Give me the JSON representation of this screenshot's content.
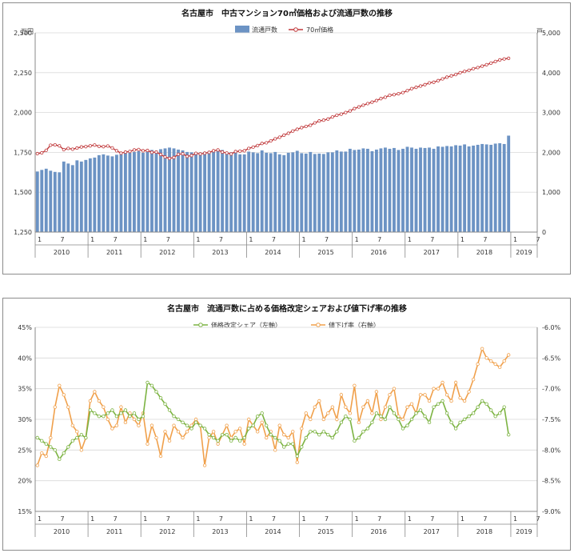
{
  "chart_data": [
    {
      "type": "bar+line",
      "title": "名古屋市　中古マンション70㎡価格および流通戸数の推移",
      "left_unit": "万円",
      "right_unit": "戸",
      "left_ticks": [
        "1,250",
        "1,500",
        "1,750",
        "2,000",
        "2,250",
        "2,500"
      ],
      "right_ticks": [
        "0",
        "1,000",
        "2,000",
        "3,000",
        "4,000",
        "5,000"
      ],
      "left_ylim": [
        1250,
        2500
      ],
      "right_ylim": [
        0,
        5000
      ],
      "legend": [
        {
          "label": "流通戸数",
          "color": "#6c93c4",
          "kind": "bar"
        },
        {
          "label": "70㎡価格",
          "color": "#c0393b",
          "kind": "line"
        }
      ],
      "month_labels": [
        "1",
        "7"
      ],
      "years": [
        "2010",
        "2011",
        "2012",
        "2013",
        "2014",
        "2015",
        "2016",
        "2017",
        "2018",
        "2019"
      ],
      "series_line": [
        1742,
        1747,
        1763,
        1795,
        1797,
        1791,
        1767,
        1775,
        1770,
        1777,
        1784,
        1786,
        1791,
        1796,
        1788,
        1786,
        1790,
        1778,
        1760,
        1745,
        1752,
        1756,
        1765,
        1768,
        1760,
        1762,
        1750,
        1752,
        1737,
        1721,
        1712,
        1718,
        1738,
        1741,
        1725,
        1730,
        1744,
        1740,
        1745,
        1750,
        1760,
        1765,
        1752,
        1746,
        1740,
        1755,
        1758,
        1760,
        1775,
        1783,
        1793,
        1806,
        1810,
        1822,
        1835,
        1845,
        1858,
        1870,
        1884,
        1895,
        1905,
        1913,
        1920,
        1935,
        1947,
        1952,
        1959,
        1972,
        1983,
        1990,
        2000,
        2010,
        2025,
        2035,
        2046,
        2056,
        2065,
        2075,
        2087,
        2096,
        2108,
        2112,
        2118,
        2125,
        2137,
        2150,
        2158,
        2166,
        2175,
        2186,
        2190,
        2200,
        2211,
        2222,
        2230,
        2238,
        2250,
        2258,
        2265,
        2275,
        2282,
        2291,
        2300,
        2310,
        2320,
        2330,
        2336,
        2340
      ],
      "series_bars": [
        1520,
        1560,
        1590,
        1540,
        1510,
        1500,
        1770,
        1720,
        1680,
        1800,
        1770,
        1810,
        1850,
        1870,
        1930,
        1950,
        1920,
        1900,
        1940,
        1950,
        1980,
        1990,
        2010,
        2030,
        1990,
        2040,
        2060,
        2040,
        2080,
        2100,
        2120,
        2100,
        2070,
        2050,
        2010,
        2000,
        2000,
        1990,
        2010,
        2030,
        2050,
        2040,
        2060,
        2010,
        2000,
        1990,
        1950,
        1950,
        2020,
        2000,
        1980,
        2050,
        1990,
        1980,
        2010,
        1950,
        1930,
        1990,
        2000,
        2040,
        1980,
        1970,
        2010,
        1960,
        1970,
        1960,
        2000,
        2000,
        2050,
        2020,
        2020,
        2090,
        2060,
        2070,
        2100,
        2090,
        2030,
        2070,
        2100,
        2120,
        2090,
        2110,
        2060,
        2090,
        2140,
        2120,
        2090,
        2120,
        2110,
        2120,
        2090,
        2150,
        2140,
        2160,
        2150,
        2180,
        2170,
        2200,
        2150,
        2170,
        2190,
        2210,
        2200,
        2190,
        2220,
        2230,
        2210,
        2420
      ]
    },
    {
      "type": "line",
      "title": "名古屋市　流通戸数に占める価格改定シェアおよび値下げ率の推移",
      "left_ticks": [
        "15%",
        "20%",
        "25%",
        "30%",
        "35%",
        "40%",
        "45%"
      ],
      "right_ticks": [
        "-9.0%",
        "-8.5%",
        "-8.0%",
        "-7.5%",
        "-7.0%",
        "-6.5%",
        "-6.0%"
      ],
      "left_ylim": [
        15,
        45
      ],
      "right_ylim": [
        -9.0,
        -6.0
      ],
      "legend": [
        {
          "label": "価格改定シェア（左軸）",
          "color": "#7cb342"
        },
        {
          "label": "値下げ率（右軸）",
          "color": "#f0a04b"
        }
      ],
      "month_labels": [
        "1",
        "7"
      ],
      "years": [
        "2010",
        "2011",
        "2012",
        "2013",
        "2014",
        "2015",
        "2016",
        "2017",
        "2018",
        "2019"
      ],
      "series_share": [
        27.0,
        26.5,
        26.0,
        25.5,
        25.0,
        23.5,
        24.5,
        25.5,
        26.5,
        27.0,
        27.5,
        27.0,
        31.5,
        31.0,
        30.5,
        30.5,
        31.0,
        31.5,
        30.5,
        31.0,
        31.5,
        30.5,
        31.0,
        30.0,
        30.5,
        36.0,
        35.5,
        34.5,
        33.5,
        32.5,
        31.5,
        30.5,
        30.0,
        29.5,
        29.0,
        28.5,
        29.5,
        29.0,
        28.5,
        27.5,
        27.0,
        26.5,
        27.5,
        27.5,
        26.5,
        27.0,
        26.5,
        27.0,
        28.5,
        29.0,
        30.5,
        31.0,
        29.0,
        27.5,
        27.0,
        26.5,
        25.5,
        26.0,
        26.0,
        24.0,
        25.5,
        27.0,
        28.0,
        28.0,
        27.5,
        28.0,
        27.5,
        27.0,
        28.0,
        29.5,
        30.5,
        30.0,
        26.5,
        27.0,
        28.0,
        28.5,
        29.5,
        31.0,
        30.5,
        30.0,
        32.0,
        31.0,
        30.0,
        28.5,
        29.0,
        30.0,
        31.0,
        31.5,
        30.5,
        29.5,
        32.0,
        32.5,
        33.0,
        31.0,
        29.5,
        28.5,
        29.5,
        30.0,
        30.5,
        31.0,
        32.0,
        33.0,
        32.5,
        31.5,
        30.5,
        31.0,
        32.0,
        27.5
      ],
      "series_rate": [
        -8.25,
        -8.05,
        -8.1,
        -7.8,
        -7.3,
        -6.95,
        -7.1,
        -7.3,
        -7.6,
        -7.7,
        -8.0,
        -7.8,
        -7.2,
        -7.05,
        -7.2,
        -7.3,
        -7.5,
        -7.65,
        -7.6,
        -7.3,
        -7.55,
        -7.4,
        -7.5,
        -7.6,
        -7.4,
        -7.9,
        -7.6,
        -7.8,
        -8.1,
        -7.7,
        -7.85,
        -7.6,
        -7.7,
        -7.8,
        -7.7,
        -7.6,
        -7.5,
        -7.6,
        -8.25,
        -7.8,
        -7.7,
        -7.9,
        -7.75,
        -7.6,
        -7.8,
        -7.7,
        -7.65,
        -7.9,
        -7.5,
        -7.6,
        -7.7,
        -7.55,
        -7.8,
        -7.7,
        -8.0,
        -7.6,
        -7.75,
        -7.8,
        -7.7,
        -8.2,
        -7.65,
        -7.4,
        -7.5,
        -7.3,
        -7.2,
        -7.5,
        -7.4,
        -7.3,
        -7.5,
        -7.1,
        -7.3,
        -7.4,
        -6.95,
        -7.55,
        -7.3,
        -7.2,
        -7.4,
        -7.05,
        -7.5,
        -7.3,
        -7.1,
        -7.0,
        -7.45,
        -7.5,
        -7.3,
        -7.25,
        -7.4,
        -7.1,
        -7.1,
        -7.2,
        -7.0,
        -7.0,
        -6.9,
        -7.1,
        -7.2,
        -6.9,
        -7.15,
        -7.2,
        -7.05,
        -6.85,
        -6.6,
        -6.35,
        -6.5,
        -6.55,
        -6.6,
        -6.65,
        -6.55,
        -6.45
      ]
    }
  ]
}
